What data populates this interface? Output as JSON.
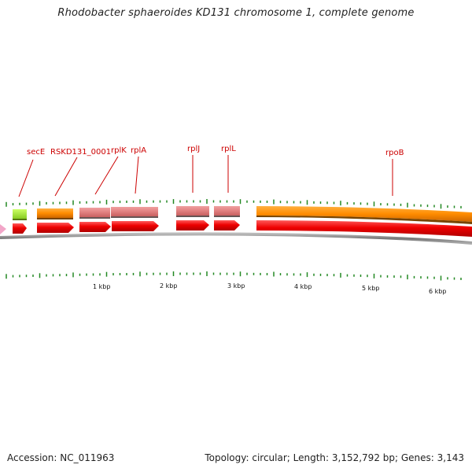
{
  "title": "Rhodobacter sphaeroides KD131 chromosome 1, complete genome",
  "gene_labels": [
    {
      "name": "secE"
    },
    {
      "name": "RSKD131_0001"
    },
    {
      "name": "rplK"
    },
    {
      "name": "rplA"
    },
    {
      "name": "rplJ"
    },
    {
      "name": "rplL"
    },
    {
      "name": "rpoB"
    }
  ],
  "scale_labels": [
    "1 kbp",
    "2 kbp",
    "3 kbp",
    "4 kbp",
    "5 kbp",
    "6 kbp"
  ],
  "colors": {
    "cds": "#ee0000",
    "gene_orange": "#ff8c00",
    "gene_pink": "#e88080",
    "gene_green": "#aaee33",
    "gene_pale": "#f2a6c8",
    "tick": "#228822",
    "label": "#cc0000",
    "backbone": "#888888"
  },
  "footer": {
    "accession": "Accession: NC_011963",
    "summary": "Topology: circular; Length: 3,152,792 bp; Genes: 3,143"
  }
}
